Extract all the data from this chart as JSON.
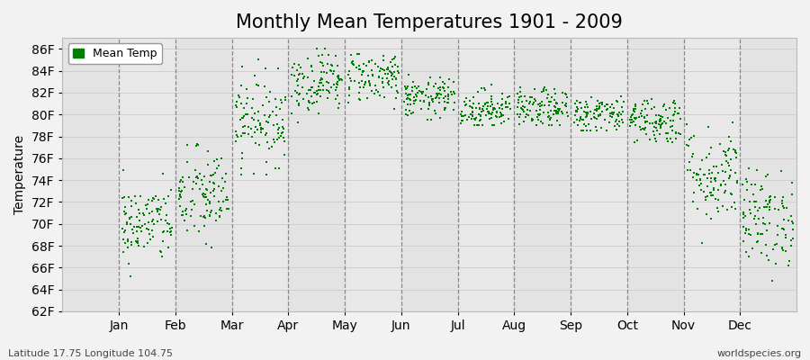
{
  "title": "Monthly Mean Temperatures 1901 - 2009",
  "ylabel": "Temperature",
  "subtitle_left": "Latitude 17.75 Longitude 104.75",
  "subtitle_right": "worldspecies.org",
  "yticks": [
    62,
    64,
    66,
    68,
    70,
    72,
    74,
    76,
    78,
    80,
    82,
    84,
    86
  ],
  "ytick_labels": [
    "62F",
    "64F",
    "66F",
    "68F",
    "70F",
    "72F",
    "74F",
    "76F",
    "78F",
    "80F",
    "82F",
    "84F",
    "86F"
  ],
  "months": [
    "Jan",
    "Feb",
    "Mar",
    "Apr",
    "May",
    "Jun",
    "Jul",
    "Aug",
    "Sep",
    "Oct",
    "Nov",
    "Dec"
  ],
  "dot_color": "#008000",
  "background_color": "#f2f2f2",
  "plot_bg_color": "#e8e8e8",
  "grid_color": "#cccccc",
  "dashed_color": "#888888",
  "title_fontsize": 15,
  "axis_label_fontsize": 10,
  "tick_fontsize": 10,
  "legend_label": "Mean Temp",
  "n_years": 109,
  "monthly_params": {
    "Jan": {
      "mean": 70.0,
      "std": 1.8,
      "min": 62.5,
      "max": 77.0
    },
    "Feb": {
      "mean": 72.5,
      "std": 2.2,
      "min": 66.5,
      "max": 77.5
    },
    "Mar": {
      "mean": 79.5,
      "std": 2.0,
      "min": 74.5,
      "max": 85.5
    },
    "Apr": {
      "mean": 83.0,
      "std": 1.4,
      "min": 79.0,
      "max": 86.0
    },
    "May": {
      "mean": 83.5,
      "std": 1.2,
      "min": 80.5,
      "max": 85.5
    },
    "Jun": {
      "mean": 81.5,
      "std": 0.9,
      "min": 79.5,
      "max": 84.5
    },
    "Jul": {
      "mean": 80.5,
      "std": 0.9,
      "min": 79.0,
      "max": 83.0
    },
    "Aug": {
      "mean": 80.5,
      "std": 0.9,
      "min": 79.0,
      "max": 82.5
    },
    "Sep": {
      "mean": 80.0,
      "std": 0.9,
      "min": 78.5,
      "max": 82.5
    },
    "Oct": {
      "mean": 79.5,
      "std": 1.1,
      "min": 77.5,
      "max": 81.5
    },
    "Nov": {
      "mean": 74.5,
      "std": 2.2,
      "min": 68.0,
      "max": 79.5
    },
    "Dec": {
      "mean": 70.5,
      "std": 2.2,
      "min": 63.5,
      "max": 75.5
    }
  }
}
